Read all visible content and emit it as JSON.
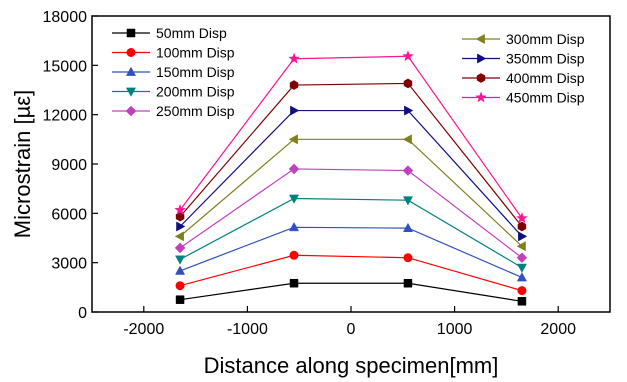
{
  "chart_data": {
    "type": "line",
    "xlabel": "Distance along specimen[mm]",
    "ylabel": "Microstrain [µε]",
    "xlim": [
      -2500,
      2500
    ],
    "ylim": [
      0,
      18000
    ],
    "xticks": [
      -2000,
      -1000,
      0,
      1000,
      2000
    ],
    "yticks": [
      0,
      3000,
      6000,
      9000,
      12000,
      15000,
      18000
    ],
    "grid": false,
    "legend_position": "top, split left and right",
    "x": [
      -1650,
      -550,
      550,
      1650
    ],
    "series": [
      {
        "name": "50mm Disp",
        "color": "#000000",
        "marker": "square",
        "values": [
          750,
          1750,
          1750,
          650
        ]
      },
      {
        "name": "100mm Disp",
        "color": "#ff0000",
        "marker": "circle",
        "values": [
          1600,
          3450,
          3300,
          1300
        ]
      },
      {
        "name": "150mm Disp",
        "color": "#3050c0",
        "marker": "triangle-up",
        "values": [
          2500,
          5150,
          5100,
          2100
        ]
      },
      {
        "name": "200mm Disp",
        "color": "#008080",
        "marker": "triangle-down",
        "values": [
          3200,
          6900,
          6800,
          2700
        ]
      },
      {
        "name": "250mm Disp",
        "color": "#c040c0",
        "marker": "diamond",
        "values": [
          3900,
          8700,
          8600,
          3300
        ]
      },
      {
        "name": "300mm Disp",
        "color": "#808020",
        "marker": "triangle-left",
        "values": [
          4600,
          10500,
          10500,
          4000
        ]
      },
      {
        "name": "350mm Disp",
        "color": "#101080",
        "marker": "triangle-right",
        "values": [
          5200,
          12250,
          12250,
          4600
        ]
      },
      {
        "name": "400mm Disp",
        "color": "#800000",
        "marker": "hexagon",
        "values": [
          5800,
          13800,
          13900,
          5200
        ]
      },
      {
        "name": "450mm Disp",
        "color": "#ff1493",
        "marker": "star",
        "values": [
          6200,
          15400,
          15550,
          5700
        ]
      }
    ],
    "legend_left": [
      "50mm Disp",
      "100mm Disp",
      "150mm Disp",
      "200mm Disp",
      "250mm Disp"
    ],
    "legend_right": [
      "300mm Disp",
      "350mm Disp",
      "400mm Disp",
      "450mm Disp"
    ]
  }
}
